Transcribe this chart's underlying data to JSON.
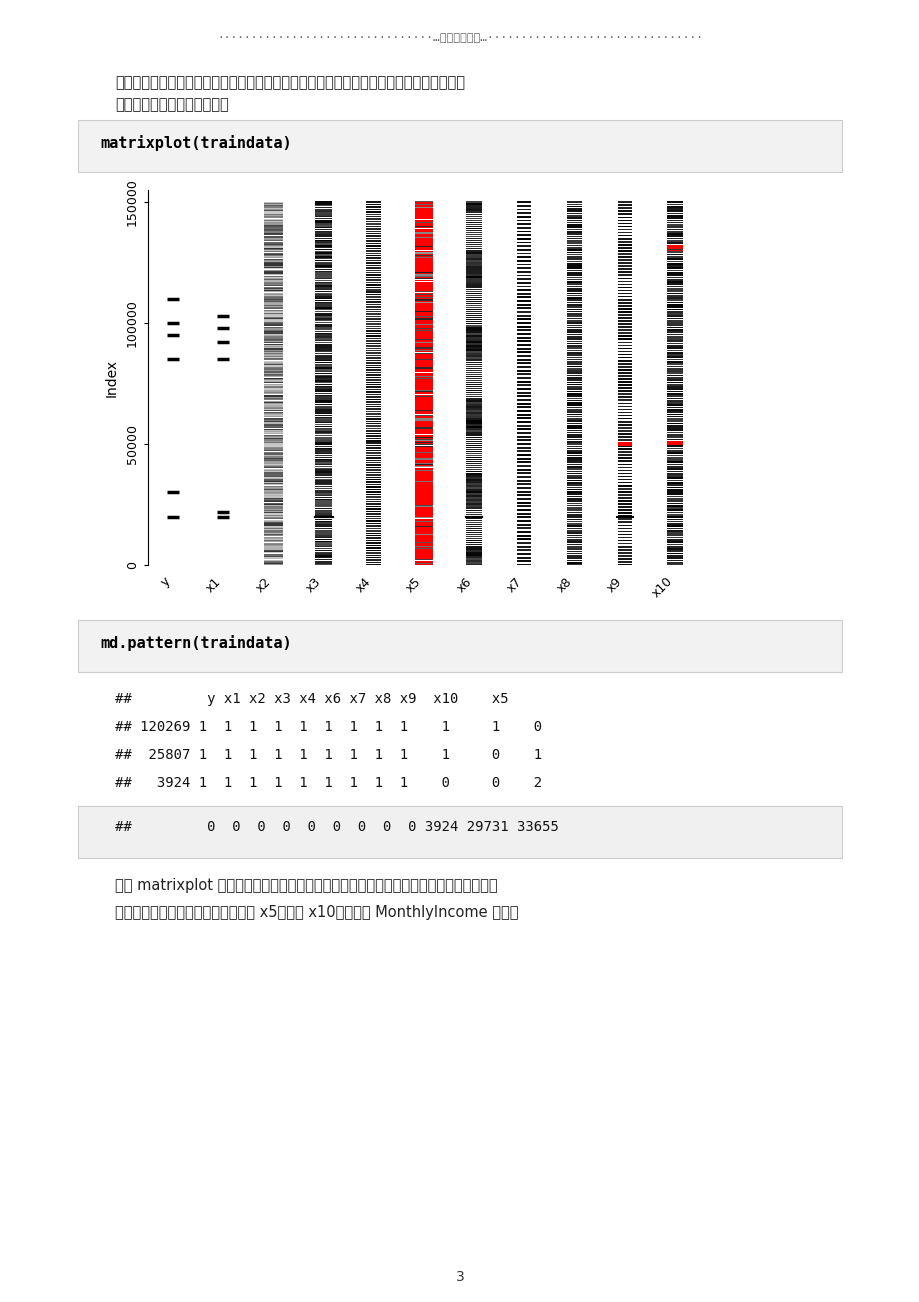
{
  "page_bg": "#ffffff",
  "header_text": "································…专业资料推荐…································",
  "para1_line1": "是否有缺失值是其中很重要的一个步骤。在正式分析前，我们先通过图形进行对观测字段的",
  "para1_line2": "缺失情况有一个直观的感受。",
  "code1_text": "matrixplot(traindata)",
  "code2_text": "md.pattern(traindata)",
  "table_header": "##         y x1 x2 x3 x4 x6 x7 x8 x9  x10    x5",
  "table_row1": "## 120269 1  1  1  1  1  1  1  1  1    1     1    0",
  "table_row2": "##  25807 1  1  1  1  1  1  1  1  1    1     0    1",
  "table_row3": "##   3924 1  1  1  1  1  1  1  1  1    0     0    2",
  "table_last_bg": "#f0f0f0",
  "table_last": "##         0  0  0  0  0  0  0  0  0 3924 29731 33655",
  "para2_line1": "利用 matrixplot 函数对缺失值部分进行可观化展示，上图中浅色表示值小，深色表示大，",
  "para2_line2": "而默认缺失值为红色。因此可以看到 x5变量和 x10变量，即 MonthlyIncome 变量和",
  "page_number": "3",
  "code_bg": "#f0f0f0",
  "code_border": "#cccccc",
  "xlabel_items": [
    "y",
    "x1",
    "x2",
    "x3",
    "x4",
    "x5",
    "x6",
    "x7",
    "x8",
    "x9",
    "x10"
  ],
  "ylabel_label": "Index",
  "ytick_labels": [
    "0",
    "50000",
    "100000",
    "150000"
  ],
  "ytick_vals": [
    0,
    50000,
    100000,
    150000
  ],
  "ymax": 150000
}
